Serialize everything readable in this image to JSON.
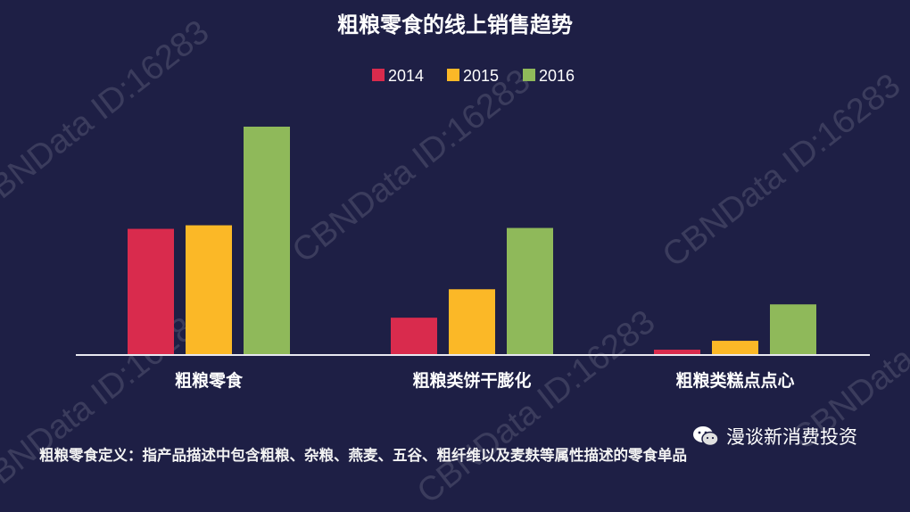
{
  "chart_data": {
    "type": "bar",
    "title": "粗粮零食的线上销售趋势",
    "categories": [
      "粗粮零食",
      "粗粮类饼干膨化",
      "粗粮类糕点点心"
    ],
    "series": [
      {
        "name": "2014",
        "color": "#d92b4d",
        "values": [
          142,
          42,
          6
        ]
      },
      {
        "name": "2015",
        "color": "#fbb827",
        "values": [
          146,
          74,
          16
        ]
      },
      {
        "name": "2016",
        "color": "#8fb95a",
        "values": [
          257,
          143,
          57
        ]
      }
    ],
    "ylim": [
      0,
      270
    ],
    "legend_position": "top-center",
    "grid": false
  },
  "watermark": {
    "text": "CBNData ID:16283"
  },
  "footnote": "粗粮零食定义：指产品描述中包含粗粮、杂粮、燕麦、五谷、粗纤维以及麦麸等属性描述的零食单品",
  "brand": {
    "name": "漫谈新消费投资",
    "icon": "wechat-icon"
  },
  "colors": {
    "background": "#1e1f45",
    "axis": "#e8e8f0",
    "text": "#ffffff"
  }
}
